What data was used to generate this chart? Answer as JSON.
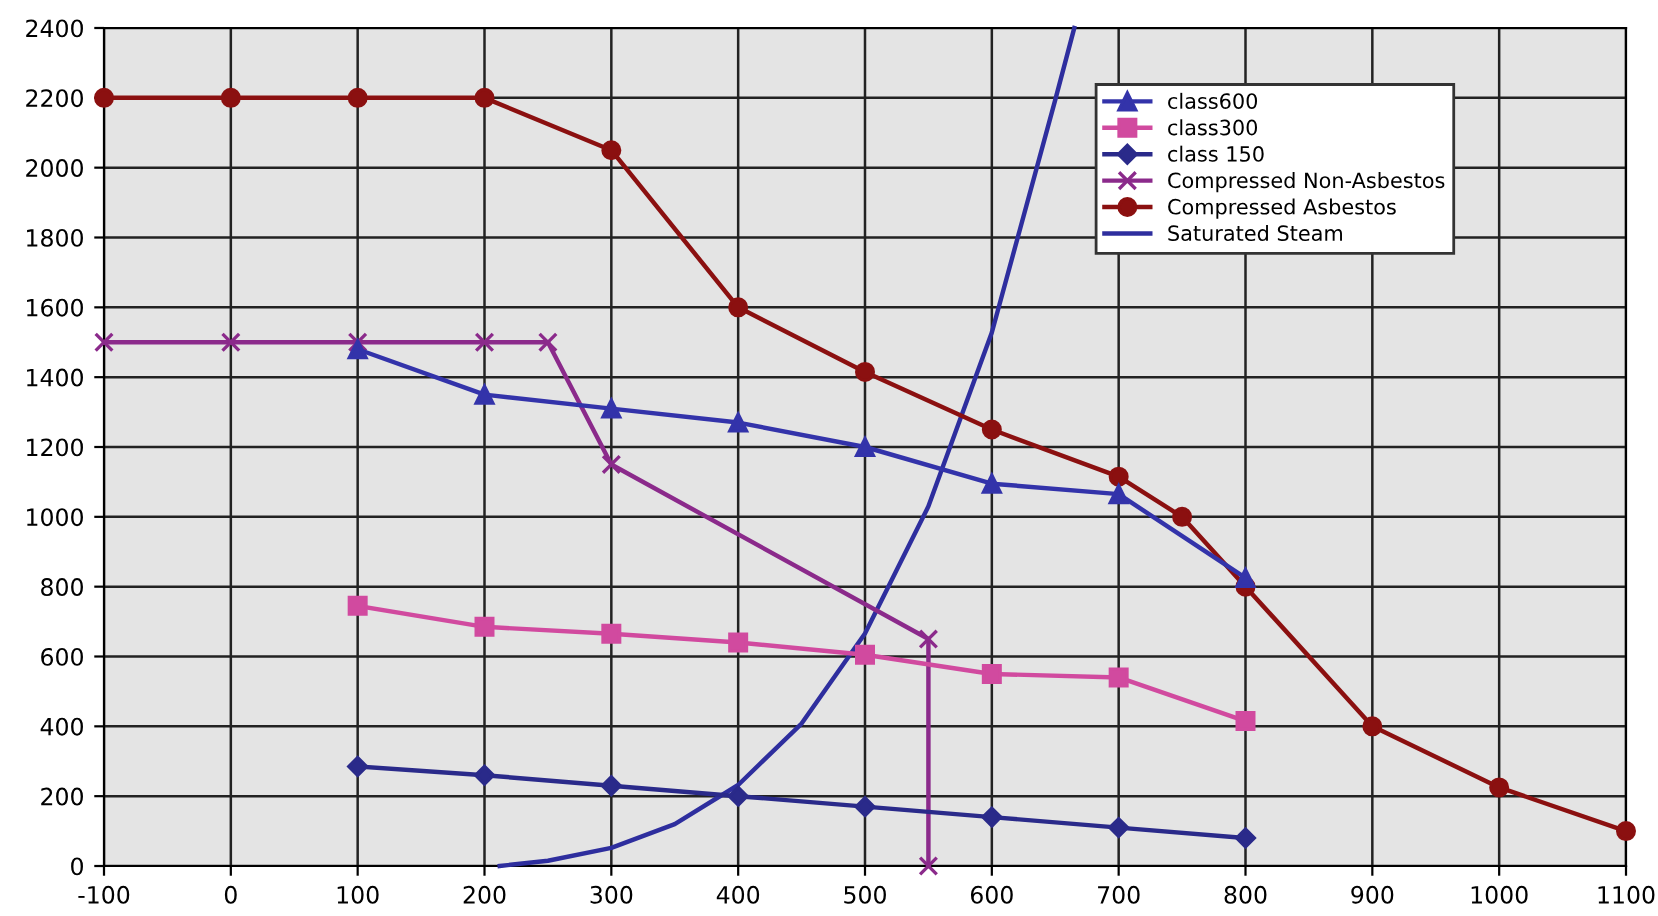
{
  "chart_data": {
    "type": "line",
    "xlim": [
      -100,
      1100
    ],
    "ylim": [
      0,
      2400
    ],
    "xticks": [
      -100,
      0,
      100,
      200,
      300,
      400,
      500,
      600,
      700,
      800,
      900,
      1000,
      1100
    ],
    "yticks": [
      0,
      200,
      400,
      600,
      800,
      1000,
      1200,
      1400,
      1600,
      1800,
      2000,
      2200,
      2400
    ],
    "grid": true,
    "legend": "top right",
    "series": [
      {
        "name": "class600",
        "color": "#3333aa",
        "marker": "triangle",
        "x": [
          100,
          200,
          300,
          400,
          500,
          600,
          700,
          800
        ],
        "values": [
          1480,
          1350,
          1310,
          1270,
          1200,
          1095,
          1065,
          825
        ]
      },
      {
        "name": "class300",
        "color": "#d14a9f",
        "marker": "square",
        "x": [
          100,
          200,
          300,
          400,
          500,
          600,
          700,
          800
        ],
        "values": [
          745,
          685,
          665,
          640,
          605,
          550,
          540,
          415
        ]
      },
      {
        "name": "class 150",
        "color": "#2a2a8a",
        "marker": "diamond",
        "x": [
          100,
          200,
          300,
          400,
          500,
          600,
          700,
          800
        ],
        "values": [
          285,
          260,
          230,
          200,
          170,
          140,
          110,
          80
        ]
      },
      {
        "name": "Compressed Non-Asbestos",
        "color": "#8b2a8b",
        "marker": "cross",
        "x": [
          -100,
          0,
          100,
          200,
          250,
          300,
          550,
          550
        ],
        "values": [
          1500,
          1500,
          1500,
          1500,
          1500,
          1150,
          650,
          0
        ]
      },
      {
        "name": "Compressed Asbestos",
        "color": "#8b1010",
        "marker": "circle",
        "x": [
          -100,
          0,
          100,
          200,
          300,
          400,
          500,
          600,
          700,
          750,
          800,
          900,
          1000,
          1100
        ],
        "values": [
          2200,
          2200,
          2200,
          2200,
          2050,
          1600,
          1415,
          1250,
          1115,
          1000,
          800,
          400,
          225,
          100
        ]
      },
      {
        "name": "Saturated Steam",
        "color": "#2e2e9e",
        "marker": "none",
        "x": [
          212,
          250,
          300,
          350,
          400,
          450,
          500,
          550,
          600,
          650,
          665
        ],
        "values": [
          0,
          15,
          52,
          120,
          232,
          408,
          666,
          1030,
          1528,
          2194,
          2400
        ]
      }
    ]
  }
}
